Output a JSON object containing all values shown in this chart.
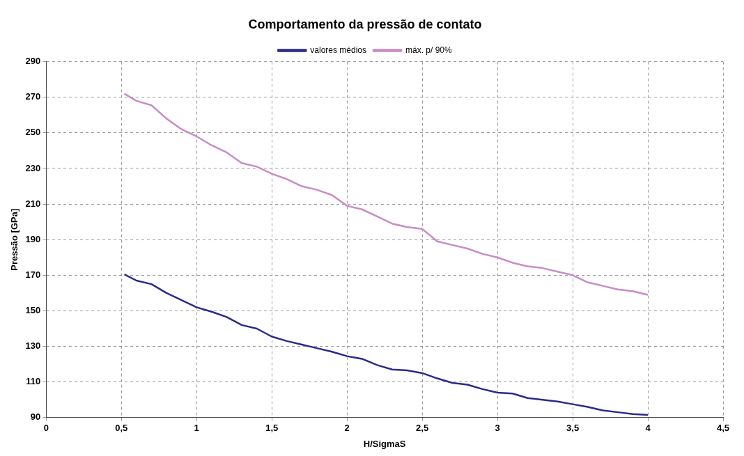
{
  "chart_data": {
    "type": "line",
    "title": "Comportamento da pressão de contato",
    "xlabel": "H/SigmaS",
    "ylabel": "Pressão [GPa]",
    "x": [
      0.52,
      0.6,
      0.7,
      0.8,
      0.9,
      1.0,
      1.1,
      1.2,
      1.3,
      1.4,
      1.5,
      1.6,
      1.7,
      1.8,
      1.9,
      2.0,
      2.1,
      2.2,
      2.3,
      2.4,
      2.5,
      2.6,
      2.7,
      2.8,
      2.9,
      3.0,
      3.1,
      3.2,
      3.3,
      3.4,
      3.5,
      3.6,
      3.7,
      3.8,
      3.9,
      4.0
    ],
    "series": [
      {
        "name": "valores médios",
        "color": "#2b2a8c",
        "values": [
          170.5,
          167,
          165,
          160,
          156,
          152,
          149.5,
          146.5,
          142,
          140,
          135.5,
          133,
          131,
          129,
          127,
          124.5,
          123,
          119.5,
          117,
          116.5,
          115,
          112,
          109.5,
          108.5,
          106,
          104,
          103.5,
          101,
          100,
          99,
          97.5,
          96,
          94,
          93,
          92,
          91.5
        ]
      },
      {
        "name": "máx. p/ 90%",
        "color": "#c98bc8",
        "values": [
          272,
          268,
          265.5,
          258,
          252,
          248,
          243,
          239,
          233,
          231,
          227,
          224,
          220,
          218,
          215,
          209,
          207,
          203,
          199,
          197,
          196,
          189,
          187,
          185,
          182,
          180,
          177,
          175,
          174,
          172,
          170,
          166,
          164,
          162,
          161,
          159
        ]
      }
    ],
    "xlim": [
      0,
      4.5
    ],
    "xticks": [
      0,
      {
        "value": 0.5,
        "label": "0,5"
      },
      1,
      {
        "value": 1.5,
        "label": "1,5"
      },
      2,
      {
        "value": 2.5,
        "label": "2,5"
      },
      3,
      {
        "value": 3.5,
        "label": "3,5"
      },
      4,
      {
        "value": 4.5,
        "label": "4,5"
      }
    ],
    "ylim": [
      90,
      290
    ],
    "yticks": [
      90,
      110,
      130,
      150,
      170,
      190,
      210,
      230,
      250,
      270,
      290
    ],
    "grid": true,
    "legend": "top",
    "marker": "none",
    "line_style": "solid"
  }
}
